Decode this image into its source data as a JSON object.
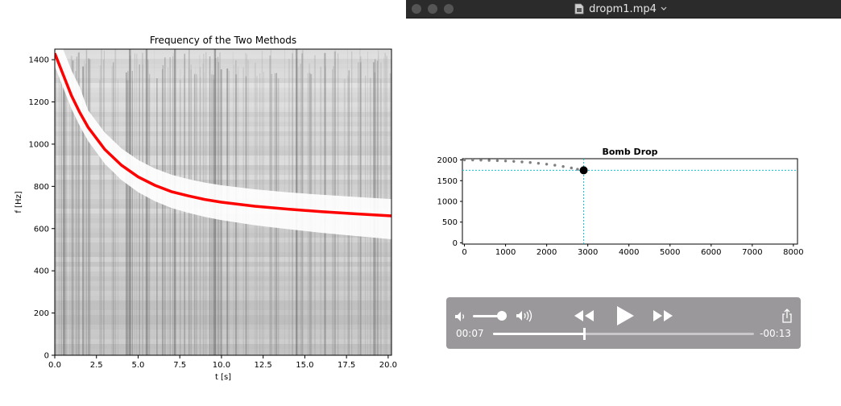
{
  "window": {
    "title": "dropm1.mp4"
  },
  "left_chart": {
    "chart_data": {
      "type": "heatmap",
      "title": "Frequency of the Two Methods",
      "xlabel": "t [s]",
      "ylabel": "f [Hz]",
      "xlim": [
        0,
        20.2
      ],
      "ylim": [
        0,
        1450
      ],
      "xticks": [
        "0.0",
        "2.5",
        "5.0",
        "7.5",
        "10.0",
        "12.5",
        "15.0",
        "17.5",
        "20.0"
      ],
      "yticks": [
        "0",
        "200",
        "400",
        "600",
        "800",
        "1000",
        "1200",
        "1400"
      ],
      "overlay_curve": {
        "color": "#ff0000",
        "x": [
          0,
          0.5,
          1,
          1.5,
          2,
          3,
          4,
          5,
          6,
          7,
          8,
          9,
          10,
          12,
          14,
          16,
          18,
          20.2
        ],
        "y": [
          1430,
          1330,
          1230,
          1150,
          1080,
          975,
          900,
          845,
          805,
          775,
          755,
          738,
          725,
          706,
          692,
          680,
          670,
          660
        ]
      }
    }
  },
  "right_chart": {
    "chart_data": {
      "type": "scatter",
      "title": "Bomb Drop",
      "xlim": [
        -50,
        8100
      ],
      "ylim": [
        -30,
        2030
      ],
      "xticks": [
        "0",
        "1000",
        "2000",
        "3000",
        "4000",
        "5000",
        "6000",
        "7000",
        "8000"
      ],
      "yticks": [
        "0",
        "500",
        "1000",
        "1500",
        "2000"
      ],
      "trail": {
        "color": "#7f7f7f",
        "x": [
          0,
          200,
          400,
          600,
          800,
          1000,
          1200,
          1400,
          1600,
          1800,
          2000,
          2200,
          2400,
          2600,
          2750
        ],
        "y": [
          2000,
          1998,
          1995,
          1990,
          1984,
          1975,
          1965,
          1953,
          1938,
          1920,
          1898,
          1872,
          1842,
          1806,
          1775
        ]
      },
      "current_point": {
        "x": 2900,
        "y": 1750,
        "color": "#000000"
      },
      "crosshair": {
        "x": 2900,
        "y": 1750,
        "color": "#17becf"
      }
    }
  },
  "player": {
    "elapsed": "00:07",
    "remaining": "-00:13",
    "progress": 0.35,
    "volume": 0.75
  }
}
